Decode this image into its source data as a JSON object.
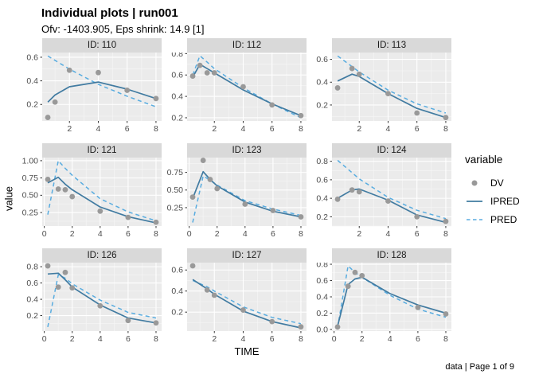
{
  "header": {
    "title": "Individual plots | run001",
    "subtitle": "Ofv: -1403.905, Eps shrink: 14.9 [1]"
  },
  "axes": {
    "x_label": "TIME",
    "y_label": "value"
  },
  "caption": "data | Page 1 of 9",
  "legend": {
    "title": "variable",
    "items": [
      {
        "label": "DV",
        "type": "point"
      },
      {
        "label": "IPRED",
        "type": "solid-line"
      },
      {
        "label": "PRED",
        "type": "dashed-line"
      }
    ]
  },
  "colors": {
    "dv": "#999999",
    "ipred": "#417ba1",
    "pred": "#58ace0",
    "panel_bg": "#ebebeb",
    "strip_bg": "#d9d9d9",
    "grid_major": "#ffffff",
    "grid_minor": "#f5f5f5",
    "tick_mark": "#333333",
    "tick_text": "#4d4d4d"
  },
  "chart_data": {
    "type": "line",
    "title": "Individual plots | run001",
    "subtitle": "Ofv: -1403.905, Eps shrink: 14.9 [1]",
    "xlabel": "TIME",
    "ylabel": "value",
    "legend_position": "right",
    "grid": true,
    "facet_layout": [
      3,
      3
    ],
    "series_names": [
      "DV",
      "IPRED",
      "PRED"
    ],
    "facets": [
      {
        "id": "110",
        "strip_label": "ID: 110",
        "xlim": [
          0.11,
          8.39
        ],
        "ylim": [
          0.06,
          0.64
        ],
        "x_ticks": [
          2,
          4,
          6,
          8
        ],
        "x_tick_labels": [
          "2",
          "4",
          "6",
          "8"
        ],
        "y_ticks": [
          0.2,
          0.4,
          0.6
        ],
        "y_tick_labels": [
          "0.2",
          "0.4",
          "0.6"
        ],
        "dv": [
          [
            0.5,
            0.09
          ],
          [
            1,
            0.22
          ],
          [
            2,
            0.49
          ],
          [
            4,
            0.47
          ],
          [
            6,
            0.32
          ],
          [
            8,
            0.25
          ]
        ],
        "ipred": [
          [
            0.5,
            0.22
          ],
          [
            1,
            0.28
          ],
          [
            2,
            0.35
          ],
          [
            4,
            0.39
          ],
          [
            6,
            0.33
          ],
          [
            8,
            0.25
          ]
        ],
        "pred": [
          [
            0.5,
            0.61
          ],
          [
            2,
            0.5
          ],
          [
            4,
            0.37
          ],
          [
            6,
            0.27
          ],
          [
            8,
            0.18
          ]
        ]
      },
      {
        "id": "112",
        "strip_label": "ID: 112",
        "xlim": [
          0.11,
          8.39
        ],
        "ylim": [
          0.17,
          0.81
        ],
        "x_ticks": [
          2,
          4,
          6,
          8
        ],
        "x_tick_labels": [
          "2",
          "4",
          "6",
          "8"
        ],
        "y_ticks": [
          0.2,
          0.4,
          0.6,
          0.8
        ],
        "y_tick_labels": [
          "0.2",
          "0.4",
          "0.6",
          "0.8"
        ],
        "dv": [
          [
            0.5,
            0.59
          ],
          [
            1,
            0.69
          ],
          [
            1.5,
            0.62
          ],
          [
            2,
            0.62
          ],
          [
            4,
            0.49
          ],
          [
            6,
            0.32
          ],
          [
            8,
            0.22
          ]
        ],
        "ipred": [
          [
            0.5,
            0.58
          ],
          [
            1,
            0.7
          ],
          [
            1.5,
            0.66
          ],
          [
            2,
            0.62
          ],
          [
            4,
            0.46
          ],
          [
            6,
            0.33
          ],
          [
            8,
            0.22
          ]
        ],
        "pred": [
          [
            0.5,
            0.6
          ],
          [
            1,
            0.78
          ],
          [
            1.5,
            0.72
          ],
          [
            2,
            0.66
          ],
          [
            4,
            0.48
          ],
          [
            6,
            0.33
          ],
          [
            8,
            0.2
          ]
        ]
      },
      {
        "id": "113",
        "strip_label": "ID: 113",
        "xlim": [
          0.11,
          8.39
        ],
        "ylim": [
          0.06,
          0.66
        ],
        "x_ticks": [
          2,
          4,
          6,
          8
        ],
        "x_tick_labels": [
          "2",
          "4",
          "6",
          "8"
        ],
        "y_ticks": [
          0.2,
          0.4,
          0.6
        ],
        "y_tick_labels": [
          "0.2",
          "0.4",
          "0.6"
        ],
        "dv": [
          [
            0.5,
            0.35
          ],
          [
            1.5,
            0.52
          ],
          [
            2,
            0.47
          ],
          [
            4,
            0.3
          ],
          [
            6,
            0.13
          ],
          [
            8,
            0.09
          ]
        ],
        "ipred": [
          [
            0.5,
            0.41
          ],
          [
            1.5,
            0.47
          ],
          [
            2,
            0.45
          ],
          [
            4,
            0.3
          ],
          [
            6,
            0.17
          ],
          [
            8,
            0.09
          ]
        ],
        "pred": [
          [
            0.5,
            0.63
          ],
          [
            2,
            0.49
          ],
          [
            4,
            0.33
          ],
          [
            6,
            0.21
          ],
          [
            8,
            0.13
          ]
        ]
      },
      {
        "id": "121",
        "strip_label": "ID: 121",
        "xlim": [
          -0.15,
          8.4
        ],
        "ylim": [
          0.055,
          1.045
        ],
        "x_ticks": [
          0,
          2,
          4,
          6,
          8
        ],
        "x_tick_labels": [
          "0",
          "2",
          "4",
          "6",
          "8"
        ],
        "y_ticks": [
          0.25,
          0.5,
          0.75,
          1.0
        ],
        "y_tick_labels": [
          "0.25",
          "0.50",
          "0.75",
          "1.00"
        ],
        "dv": [
          [
            0.25,
            0.73
          ],
          [
            1,
            0.59
          ],
          [
            1.5,
            0.58
          ],
          [
            2,
            0.48
          ],
          [
            4,
            0.27
          ],
          [
            6,
            0.18
          ],
          [
            8,
            0.11
          ]
        ],
        "ipred": [
          [
            0.25,
            0.68
          ],
          [
            1,
            0.76
          ],
          [
            1.5,
            0.66
          ],
          [
            2,
            0.58
          ],
          [
            4,
            0.33
          ],
          [
            6,
            0.19
          ],
          [
            8,
            0.1
          ]
        ],
        "pred": [
          [
            0.25,
            0.22
          ],
          [
            1,
            1.0
          ],
          [
            1.5,
            0.89
          ],
          [
            2,
            0.79
          ],
          [
            4,
            0.45
          ],
          [
            6,
            0.26
          ],
          [
            8,
            0.13
          ]
        ]
      },
      {
        "id": "123",
        "strip_label": "ID: 123",
        "xlim": [
          -0.15,
          8.4
        ],
        "ylim": [
          -0.01,
          0.96
        ],
        "x_ticks": [
          0,
          2,
          4,
          6,
          8
        ],
        "x_tick_labels": [
          "0",
          "2",
          "4",
          "6",
          "8"
        ],
        "y_ticks": [
          0.25,
          0.5,
          0.75
        ],
        "y_tick_labels": [
          "0.25",
          "0.50",
          "0.75"
        ],
        "dv": [
          [
            0.25,
            0.4
          ],
          [
            1,
            0.92
          ],
          [
            1.5,
            0.65
          ],
          [
            2,
            0.52
          ],
          [
            4,
            0.3
          ],
          [
            6,
            0.21
          ],
          [
            8,
            0.12
          ]
        ],
        "ipred": [
          [
            0.25,
            0.38
          ],
          [
            1,
            0.76
          ],
          [
            1.5,
            0.65
          ],
          [
            2,
            0.56
          ],
          [
            4,
            0.33
          ],
          [
            6,
            0.2
          ],
          [
            8,
            0.12
          ]
        ],
        "pred": [
          [
            0.25,
            0.04
          ],
          [
            1,
            0.7
          ],
          [
            1.5,
            0.64
          ],
          [
            2,
            0.57
          ],
          [
            4,
            0.35
          ],
          [
            6,
            0.23
          ],
          [
            8,
            0.14
          ]
        ]
      },
      {
        "id": "124",
        "strip_label": "ID: 124",
        "xlim": [
          0.11,
          8.39
        ],
        "ylim": [
          0.1,
          0.84
        ],
        "x_ticks": [
          2,
          4,
          6,
          8
        ],
        "x_tick_labels": [
          "2",
          "4",
          "6",
          "8"
        ],
        "y_ticks": [
          0.2,
          0.4,
          0.6,
          0.8
        ],
        "y_tick_labels": [
          "0.2",
          "0.4",
          "0.6",
          "0.8"
        ],
        "dv": [
          [
            0.5,
            0.39
          ],
          [
            1.5,
            0.49
          ],
          [
            2,
            0.47
          ],
          [
            4,
            0.37
          ],
          [
            6,
            0.2
          ],
          [
            8,
            0.15
          ]
        ],
        "ipred": [
          [
            0.5,
            0.4
          ],
          [
            1.5,
            0.49
          ],
          [
            2,
            0.5
          ],
          [
            4,
            0.38
          ],
          [
            6,
            0.22
          ],
          [
            8,
            0.14
          ]
        ],
        "pred": [
          [
            0.5,
            0.81
          ],
          [
            2,
            0.61
          ],
          [
            4,
            0.41
          ],
          [
            6,
            0.27
          ],
          [
            8,
            0.18
          ]
        ]
      },
      {
        "id": "126",
        "strip_label": "ID: 126",
        "xlim": [
          -0.15,
          8.4
        ],
        "ylim": [
          0.01,
          0.85
        ],
        "x_ticks": [
          0,
          2,
          4,
          6,
          8
        ],
        "x_tick_labels": [
          "0",
          "2",
          "4",
          "6",
          "8"
        ],
        "y_ticks": [
          0.2,
          0.4,
          0.6,
          0.8
        ],
        "y_tick_labels": [
          "0.2",
          "0.4",
          "0.6",
          "0.8"
        ],
        "dv": [
          [
            0.25,
            0.81
          ],
          [
            1,
            0.55
          ],
          [
            1.5,
            0.73
          ],
          [
            2,
            0.54
          ],
          [
            4,
            0.32
          ],
          [
            6,
            0.14
          ],
          [
            8,
            0.11
          ]
        ],
        "ipred": [
          [
            0.25,
            0.71
          ],
          [
            1,
            0.72
          ],
          [
            1.5,
            0.64
          ],
          [
            2,
            0.55
          ],
          [
            4,
            0.33
          ],
          [
            6,
            0.17
          ],
          [
            8,
            0.11
          ]
        ],
        "pred": [
          [
            0.25,
            0.06
          ],
          [
            1,
            0.7
          ],
          [
            1.5,
            0.66
          ],
          [
            2,
            0.59
          ],
          [
            4,
            0.39
          ],
          [
            6,
            0.24
          ],
          [
            8,
            0.17
          ]
        ]
      },
      {
        "id": "127",
        "strip_label": "ID: 127",
        "xlim": [
          0.11,
          8.39
        ],
        "ylim": [
          0.02,
          0.67
        ],
        "x_ticks": [
          2,
          4,
          6,
          8
        ],
        "x_tick_labels": [
          "2",
          "4",
          "6",
          "8"
        ],
        "y_ticks": [
          0.2,
          0.4,
          0.6
        ],
        "y_tick_labels": [
          "0.2",
          "0.4",
          "0.6"
        ],
        "dv": [
          [
            0.5,
            0.64
          ],
          [
            1.5,
            0.41
          ],
          [
            2,
            0.36
          ],
          [
            4,
            0.22
          ],
          [
            6,
            0.11
          ],
          [
            8,
            0.06
          ]
        ],
        "ipred": [
          [
            0.5,
            0.51
          ],
          [
            1.5,
            0.42
          ],
          [
            2,
            0.37
          ],
          [
            4,
            0.21
          ],
          [
            6,
            0.11
          ],
          [
            8,
            0.05
          ]
        ],
        "pred": [
          [
            0.5,
            0.5
          ],
          [
            1.5,
            0.44
          ],
          [
            2,
            0.4
          ],
          [
            4,
            0.25
          ],
          [
            6,
            0.15
          ],
          [
            8,
            0.09
          ]
        ]
      },
      {
        "id": "128",
        "strip_label": "ID: 128",
        "xlim": [
          -0.15,
          8.4
        ],
        "ylim": [
          -0.02,
          0.82
        ],
        "x_ticks": [
          0,
          2,
          4,
          6,
          8
        ],
        "x_tick_labels": [
          "0",
          "2",
          "4",
          "6",
          "8"
        ],
        "y_ticks": [
          0.0,
          0.2,
          0.4,
          0.6,
          0.8
        ],
        "y_tick_labels": [
          "0.0",
          "0.2",
          "0.4",
          "0.6",
          "0.8"
        ],
        "dv": [
          [
            0.25,
            0.03
          ],
          [
            1,
            0.53
          ],
          [
            1.5,
            0.7
          ],
          [
            2,
            0.66
          ],
          [
            6,
            0.27
          ],
          [
            8,
            0.19
          ]
        ],
        "ipred": [
          [
            0.25,
            0.04
          ],
          [
            1,
            0.55
          ],
          [
            1.5,
            0.62
          ],
          [
            2,
            0.64
          ],
          [
            4,
            0.44
          ],
          [
            6,
            0.3
          ],
          [
            8,
            0.2
          ]
        ],
        "pred": [
          [
            0.25,
            0.02
          ],
          [
            1,
            0.78
          ],
          [
            1.5,
            0.7
          ],
          [
            2,
            0.64
          ],
          [
            4,
            0.42
          ],
          [
            6,
            0.25
          ],
          [
            8,
            0.15
          ]
        ]
      }
    ]
  }
}
